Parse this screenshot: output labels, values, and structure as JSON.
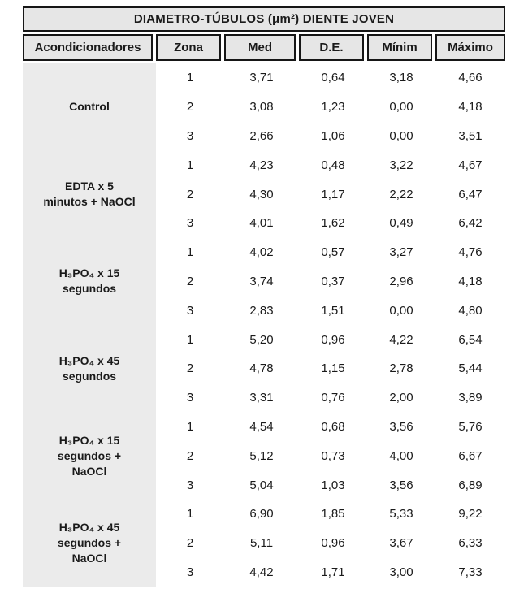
{
  "table": {
    "title": "DIAMETRO-TÚBULOS (μm²) DIENTE JOVEN",
    "headers": [
      "Acondicionadores",
      "Zona",
      "Med",
      "D.E.",
      "Mínim",
      "Máximo"
    ],
    "groups": [
      {
        "label": "Control",
        "rows": [
          [
            "1",
            "3,71",
            "0,64",
            "3,18",
            "4,66"
          ],
          [
            "2",
            "3,08",
            "1,23",
            "0,00",
            "4,18"
          ],
          [
            "3",
            "2,66",
            "1,06",
            "0,00",
            "3,51"
          ]
        ]
      },
      {
        "label": "EDTA x 5\nminutos + NaOCl",
        "rows": [
          [
            "1",
            "4,23",
            "0,48",
            "3,22",
            "4,67"
          ],
          [
            "2",
            "4,30",
            "1,17",
            "2,22",
            "6,47"
          ],
          [
            "3",
            "4,01",
            "1,62",
            "0,49",
            "6,42"
          ]
        ]
      },
      {
        "label": "H₃PO₄ x 15\nsegundos",
        "rows": [
          [
            "1",
            "4,02",
            "0,57",
            "3,27",
            "4,76"
          ],
          [
            "2",
            "3,74",
            "0,37",
            "2,96",
            "4,18"
          ],
          [
            "3",
            "2,83",
            "1,51",
            "0,00",
            "4,80"
          ]
        ]
      },
      {
        "label": "H₃PO₄ x 45\nsegundos",
        "rows": [
          [
            "1",
            "5,20",
            "0,96",
            "4,22",
            "6,54"
          ],
          [
            "2",
            "4,78",
            "1,15",
            "2,78",
            "5,44"
          ],
          [
            "3",
            "3,31",
            "0,76",
            "2,00",
            "3,89"
          ]
        ]
      },
      {
        "label": "H₃PO₄ x 15\nsegundos +\nNaOCl",
        "rows": [
          [
            "1",
            "4,54",
            "0,68",
            "3,56",
            "5,76"
          ],
          [
            "2",
            "5,12",
            "0,73",
            "4,00",
            "6,67"
          ],
          [
            "3",
            "5,04",
            "1,03",
            "3,56",
            "6,89"
          ]
        ]
      },
      {
        "label": "H₃PO₄ x 45\nsegundos +\nNaOCl",
        "rows": [
          [
            "1",
            "6,90",
            "1,85",
            "5,33",
            "9,22"
          ],
          [
            "2",
            "5,11",
            "0,96",
            "3,67",
            "6,33"
          ],
          [
            "3",
            "4,42",
            "1,71",
            "3,00",
            "7,33"
          ]
        ]
      }
    ],
    "colors": {
      "header_bg": "#e6e6e6",
      "label_column_bg": "#ebebeb",
      "border": "#161616",
      "text": "#1a1a1a"
    }
  },
  "chart_data": {
    "type": "table",
    "title": "DIAMETRO-TÚBULOS (μm²) DIENTE JOVEN",
    "columns": [
      "Acondicionadores",
      "Zona",
      "Med",
      "D.E.",
      "Mínim",
      "Máximo"
    ],
    "rows": [
      [
        "Control",
        1,
        3.71,
        0.64,
        3.18,
        4.66
      ],
      [
        "Control",
        2,
        3.08,
        1.23,
        0.0,
        4.18
      ],
      [
        "Control",
        3,
        2.66,
        1.06,
        0.0,
        3.51
      ],
      [
        "EDTA x 5 minutos + NaOCl",
        1,
        4.23,
        0.48,
        3.22,
        4.67
      ],
      [
        "EDTA x 5 minutos + NaOCl",
        2,
        4.3,
        1.17,
        2.22,
        6.47
      ],
      [
        "EDTA x 5 minutos + NaOCl",
        3,
        4.01,
        1.62,
        0.49,
        6.42
      ],
      [
        "H₃PO₄ x 15 segundos",
        1,
        4.02,
        0.57,
        3.27,
        4.76
      ],
      [
        "H₃PO₄ x 15 segundos",
        2,
        3.74,
        0.37,
        2.96,
        4.18
      ],
      [
        "H₃PO₄ x 15 segundos",
        3,
        2.83,
        1.51,
        0.0,
        4.8
      ],
      [
        "H₃PO₄ x 45 segundos",
        1,
        5.2,
        0.96,
        4.22,
        6.54
      ],
      [
        "H₃PO₄ x 45 segundos",
        2,
        4.78,
        1.15,
        2.78,
        5.44
      ],
      [
        "H₃PO₄ x 45 segundos",
        3,
        3.31,
        0.76,
        2.0,
        3.89
      ],
      [
        "H₃PO₄ x 15 segundos + NaOCl",
        1,
        4.54,
        0.68,
        3.56,
        5.76
      ],
      [
        "H₃PO₄ x 15 segundos + NaOCl",
        2,
        5.12,
        0.73,
        4.0,
        6.67
      ],
      [
        "H₃PO₄ x 15 segundos + NaOCl",
        3,
        5.04,
        1.03,
        3.56,
        6.89
      ],
      [
        "H₃PO₄ x 45 segundos + NaOCl",
        1,
        6.9,
        1.85,
        5.33,
        9.22
      ],
      [
        "H₃PO₄ x 45 segundos + NaOCl",
        2,
        5.11,
        0.96,
        3.67,
        6.33
      ],
      [
        "H₃PO₄ x 45 segundos + NaOCl",
        3,
        4.42,
        1.71,
        3.0,
        7.33
      ]
    ],
    "decimal_separator": ",",
    "notes": "Values shown with comma decimals; 6 conditioner groups × 3 zones; no gridlines in body area"
  }
}
